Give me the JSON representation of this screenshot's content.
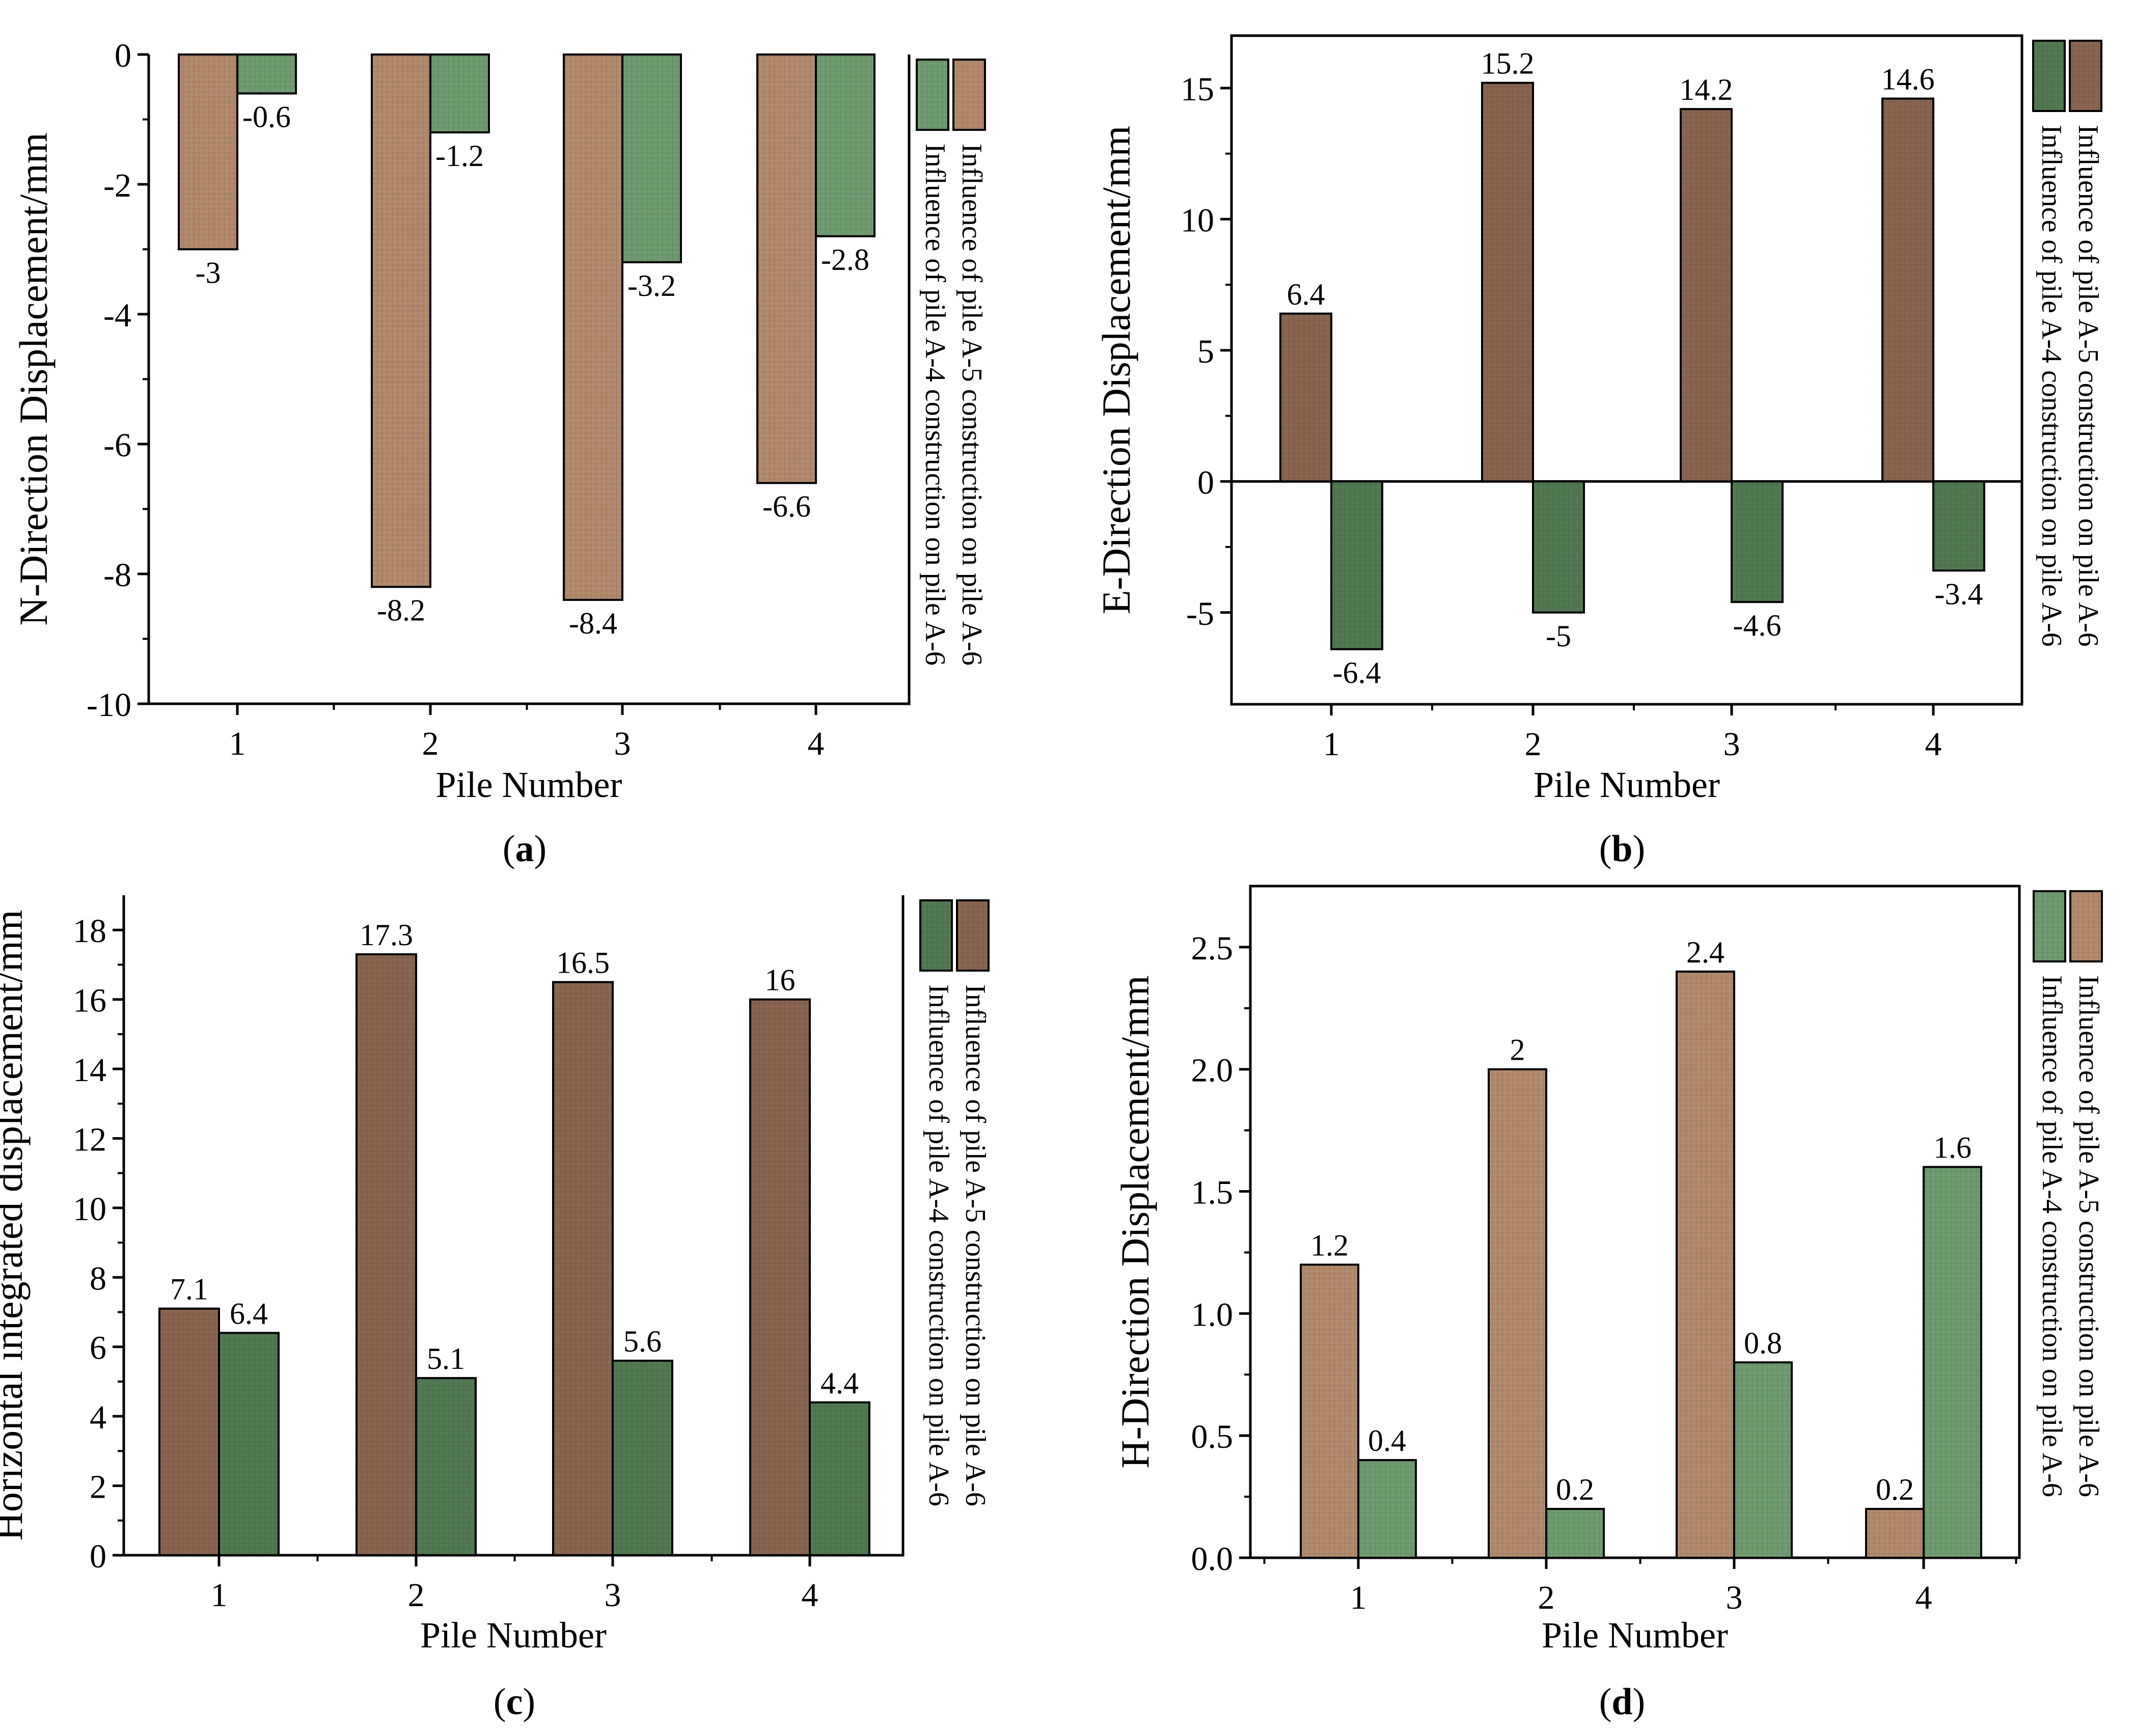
{
  "colors": {
    "brown": "#b38a6c",
    "brown_dark": "#8a6550",
    "green": "#6f9c70",
    "green_dark": "#517a52",
    "axis": "#000000"
  },
  "chart_data": [
    {
      "id": "a",
      "caption": "a",
      "type": "bar",
      "ylabel": "N-Direction Displacement/mm",
      "xlabel": "Pile Number",
      "categories": [
        "1",
        "2",
        "3",
        "4"
      ],
      "ylim": [
        -10,
        0
      ],
      "yticks": [
        0,
        -2,
        -4,
        -6,
        -8,
        -10
      ],
      "ytick_labels": [
        "0",
        "-2",
        "-4",
        "-6",
        "-8",
        "-10"
      ],
      "series": [
        {
          "name": "Influence of pile A-5 construction on pile A-6",
          "color": "brown",
          "values": [
            -3,
            -8.2,
            -8.4,
            -6.6
          ],
          "value_labels": [
            "-3",
            "-8.2",
            "-8.4",
            "-6.6"
          ]
        },
        {
          "name": "Influence of pile A-4 construction on pile A-6",
          "color": "green",
          "values": [
            -0.6,
            -1.2,
            -3.2,
            -2.8
          ],
          "value_labels": [
            "-0.6",
            "-1.2",
            "-3.2",
            "-2.8"
          ]
        }
      ]
    },
    {
      "id": "b",
      "caption": "b",
      "type": "bar",
      "ylabel": "E-Direction Displacement/mm",
      "xlabel": "Pile Number",
      "categories": [
        "1",
        "2",
        "3",
        "4"
      ],
      "ylim": [
        -8.5,
        17
      ],
      "yticks": [
        15,
        10,
        5,
        0,
        -5
      ],
      "ytick_labels": [
        "15",
        "10",
        "5",
        "0",
        "-5"
      ],
      "zero_line": true,
      "series": [
        {
          "name": "Influence of pile A-5 construction on pile A-6",
          "color": "brown_dark",
          "values": [
            6.4,
            15.2,
            14.2,
            14.6
          ],
          "value_labels": [
            "6.4",
            "15.2",
            "14.2",
            "14.6"
          ]
        },
        {
          "name": "Influence of pile A-4 construction on pile A-6",
          "color": "green_dark",
          "values": [
            -6.4,
            -5,
            -4.6,
            -3.4
          ],
          "value_labels": [
            "-6.4",
            "-5",
            "-4.6",
            "-3.4"
          ]
        }
      ]
    },
    {
      "id": "c",
      "caption": "c",
      "type": "bar",
      "ylabel": "Horizontal integrated displacement/mm",
      "xlabel": "Pile Number",
      "categories": [
        "1",
        "2",
        "3",
        "4"
      ],
      "ylim": [
        0,
        19
      ],
      "yticks": [
        0,
        2,
        4,
        6,
        8,
        10,
        12,
        14,
        16,
        18
      ],
      "ytick_labels": [
        "0",
        "2",
        "4",
        "6",
        "8",
        "10",
        "12",
        "14",
        "16",
        "18"
      ],
      "series": [
        {
          "name": "Influence of pile A-5 construction on pile A-6",
          "color": "brown_dark",
          "values": [
            7.1,
            17.3,
            16.5,
            16
          ],
          "value_labels": [
            "7.1",
            "17.3",
            "16.5",
            "16"
          ]
        },
        {
          "name": "Influence of pile A-4 construction on pile A-6",
          "color": "green_dark",
          "values": [
            6.4,
            5.1,
            5.6,
            4.4
          ],
          "value_labels": [
            "6.4",
            "5.1",
            "5.6",
            "4.4"
          ]
        }
      ]
    },
    {
      "id": "d",
      "caption": "d",
      "type": "bar",
      "ylabel": "H-Direction Displacement/mm",
      "xlabel": "Pile Number",
      "categories": [
        "1",
        "2",
        "3",
        "4"
      ],
      "ylim": [
        0,
        2.75
      ],
      "yticks": [
        0,
        0.5,
        1.0,
        1.5,
        2.0,
        2.5
      ],
      "ytick_labels": [
        "0.0",
        "0.5",
        "1.0",
        "1.5",
        "2.0",
        "2.5"
      ],
      "series": [
        {
          "name": "Influence of pile A-5 construction on pile A-6",
          "color": "brown",
          "values": [
            1.2,
            2,
            2.4,
            0.2
          ],
          "value_labels": [
            "1.2",
            "2",
            "2.4",
            "0.2"
          ]
        },
        {
          "name": "Influence of pile A-4 construction on pile A-6",
          "color": "green",
          "values": [
            0.4,
            0.2,
            0.8,
            1.6
          ],
          "value_labels": [
            "0.4",
            "0.2",
            "0.8",
            "1.6"
          ]
        }
      ]
    }
  ]
}
